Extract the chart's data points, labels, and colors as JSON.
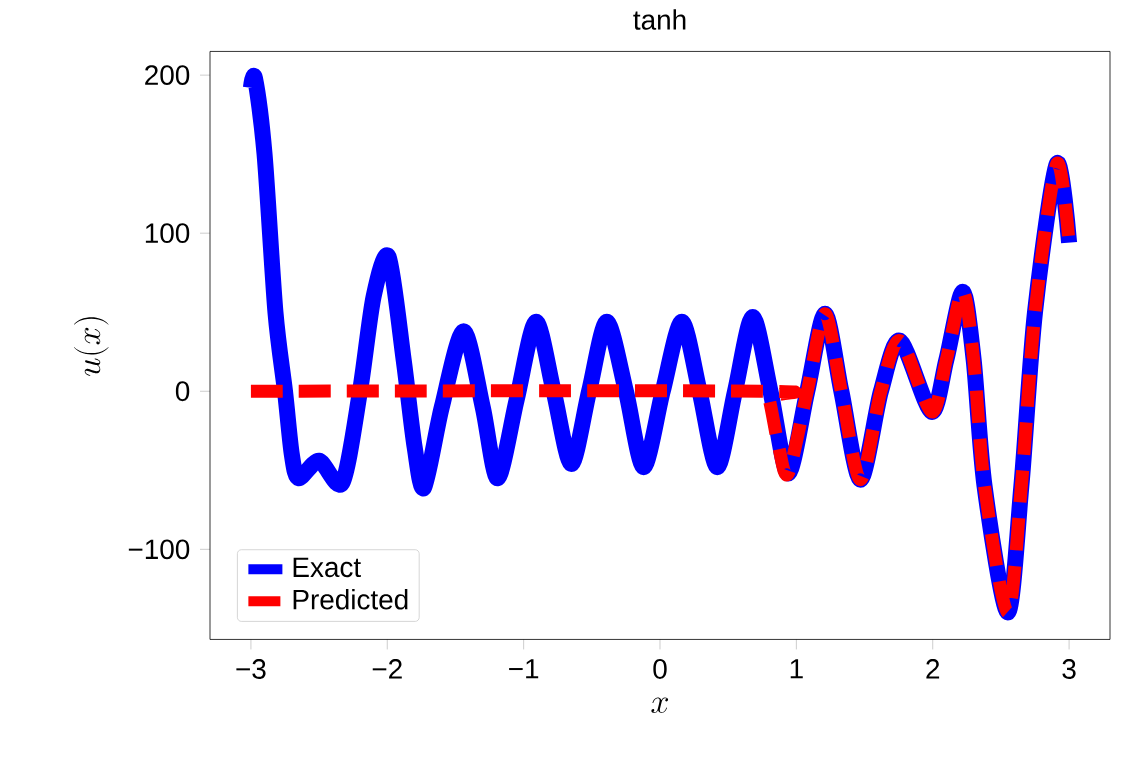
{
  "chart_data": {
    "type": "line",
    "title": "tanh",
    "xlabel": "x",
    "ylabel": "u(x)",
    "series": [
      {
        "name": "Exact",
        "color": "#0000ff",
        "line_style": "solid",
        "x": [
          -3.0,
          -2.97,
          -2.9,
          -2.82,
          -2.75,
          -2.7,
          -2.65,
          -2.5,
          -2.33,
          -2.2,
          -2.1,
          -1.99,
          -1.88,
          -1.8,
          -1.73,
          -1.6,
          -1.44,
          -1.3,
          -1.19,
          -1.05,
          -0.91,
          -0.78,
          -0.65,
          -0.52,
          -0.39,
          -0.25,
          -0.12,
          0.02,
          0.16,
          0.29,
          0.42,
          0.55,
          0.68,
          0.81,
          0.94,
          1.08,
          1.21,
          1.33,
          1.47,
          1.62,
          1.76,
          1.99,
          2.1,
          2.22,
          2.3,
          2.38,
          2.55,
          2.65,
          2.75,
          2.91,
          3.0
        ],
        "values": [
          192,
          198,
          150,
          50,
          0,
          -40,
          -55,
          -44,
          -58,
          0,
          60,
          85,
          20,
          -35,
          -61,
          -10,
          38,
          -10,
          -55,
          -5,
          44,
          0,
          -46,
          0,
          44,
          0,
          -48,
          0,
          44,
          0,
          -48,
          0,
          47,
          0,
          -52,
          0,
          49,
          0,
          -56,
          0,
          32,
          -13,
          20,
          63,
          20,
          -60,
          -140,
          -60,
          50,
          144,
          94
        ]
      },
      {
        "name": "Predicted",
        "color": "#ff0000",
        "line_style": "dashed",
        "x": [
          -3.0,
          0.75,
          0.8,
          0.87,
          0.94,
          1.08,
          1.21,
          1.33,
          1.47,
          1.62,
          1.76,
          1.99,
          2.1,
          2.22,
          2.3,
          2.38,
          2.55,
          2.65,
          2.75,
          2.91,
          3.0
        ],
        "values": [
          0,
          0,
          -5,
          -35,
          -52,
          0,
          49,
          0,
          -56,
          0,
          32,
          -13,
          20,
          63,
          20,
          -60,
          -140,
          -60,
          50,
          144,
          94
        ]
      }
    ],
    "xlim": [
      -3.3,
      3.3
    ],
    "ylim": [
      -157,
      215
    ],
    "xticks": [
      {
        "value": -3,
        "label": "−3"
      },
      {
        "value": -2,
        "label": "−2"
      },
      {
        "value": -1,
        "label": "−1"
      },
      0,
      1,
      2,
      3
    ],
    "yticks": [
      {
        "value": -100,
        "label": "−100"
      },
      0,
      100,
      200
    ],
    "legend": "bottom left",
    "grid": false
  }
}
